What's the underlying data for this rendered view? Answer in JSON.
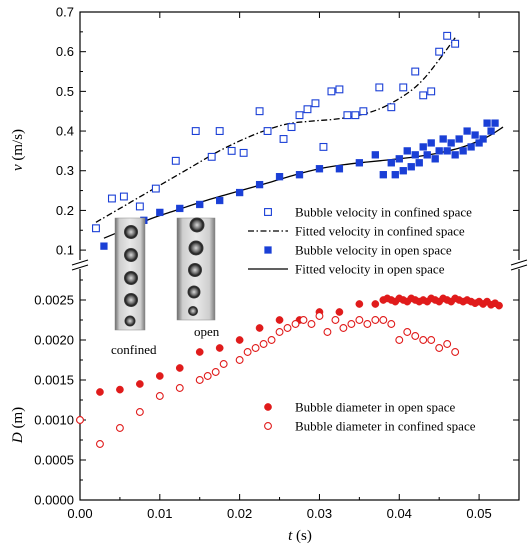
{
  "chart_data": {
    "type": "scatter",
    "xlabel": "t (s)",
    "xlim": [
      0.0,
      0.055
    ],
    "x_ticks": [
      "0.00",
      "0.01",
      "0.02",
      "0.03",
      "0.04",
      "0.05"
    ],
    "x_tick_values": [
      0.0,
      0.01,
      0.02,
      0.03,
      0.04,
      0.05
    ],
    "panels": [
      {
        "name": "velocity",
        "ylabel": "v (m/s)",
        "ylim": [
          0.07,
          0.7
        ],
        "y_ticks": [
          "0.1",
          "0.2",
          "0.3",
          "0.4",
          "0.5",
          "0.6",
          "0.7"
        ],
        "y_tick_values": [
          0.1,
          0.2,
          0.3,
          0.4,
          0.5,
          0.6,
          0.7
        ],
        "series": [
          {
            "name": "Bubble velocity in confined space",
            "marker": "open-square",
            "color": "#1a3fd6",
            "x": [
              0.002,
              0.004,
              0.0055,
              0.0075,
              0.0095,
              0.012,
              0.0145,
              0.0165,
              0.0175,
              0.019,
              0.0205,
              0.0225,
              0.0235,
              0.0255,
              0.0265,
              0.0275,
              0.0285,
              0.0295,
              0.0305,
              0.0315,
              0.0325,
              0.0335,
              0.0345,
              0.0355,
              0.0375,
              0.039,
              0.0405,
              0.042,
              0.043,
              0.044,
              0.045,
              0.046,
              0.047
            ],
            "y": [
              0.155,
              0.23,
              0.235,
              0.21,
              0.255,
              0.325,
              0.4,
              0.335,
              0.4,
              0.35,
              0.345,
              0.45,
              0.4,
              0.38,
              0.41,
              0.44,
              0.455,
              0.47,
              0.36,
              0.5,
              0.505,
              0.44,
              0.44,
              0.45,
              0.51,
              0.46,
              0.51,
              0.55,
              0.49,
              0.5,
              0.6,
              0.64,
              0.62
            ]
          },
          {
            "name": "Fitted velocity in confined space",
            "line": "dash-dot",
            "color": "#000000",
            "x": [
              0.002,
              0.005,
              0.008,
              0.011,
              0.014,
              0.017,
              0.02,
              0.023,
              0.026,
              0.029,
              0.032,
              0.035,
              0.038,
              0.041,
              0.043,
              0.045,
              0.047
            ],
            "y": [
              0.17,
              0.205,
              0.24,
              0.275,
              0.31,
              0.345,
              0.375,
              0.4,
              0.418,
              0.425,
              0.43,
              0.44,
              0.46,
              0.495,
              0.53,
              0.58,
              0.635
            ]
          },
          {
            "name": "Bubble velocity in open space",
            "marker": "filled-square",
            "color": "#1a3fd6",
            "x": [
              0.003,
              0.0055,
              0.008,
              0.01,
              0.0125,
              0.015,
              0.0175,
              0.02,
              0.0225,
              0.025,
              0.0275,
              0.03,
              0.0325,
              0.035,
              0.037,
              0.038,
              0.039,
              0.0395,
              0.04,
              0.0405,
              0.041,
              0.0415,
              0.042,
              0.0425,
              0.043,
              0.0435,
              0.044,
              0.0445,
              0.045,
              0.0455,
              0.046,
              0.0465,
              0.047,
              0.0475,
              0.048,
              0.0485,
              0.049,
              0.0495,
              0.05,
              0.0505,
              0.051,
              0.0515,
              0.052
            ],
            "y": [
              0.11,
              0.15,
              0.175,
              0.195,
              0.205,
              0.215,
              0.225,
              0.245,
              0.265,
              0.285,
              0.29,
              0.305,
              0.305,
              0.32,
              0.34,
              0.29,
              0.32,
              0.29,
              0.33,
              0.3,
              0.35,
              0.31,
              0.34,
              0.32,
              0.36,
              0.34,
              0.37,
              0.33,
              0.35,
              0.38,
              0.35,
              0.37,
              0.34,
              0.38,
              0.35,
              0.4,
              0.36,
              0.39,
              0.37,
              0.38,
              0.42,
              0.4,
              0.42
            ]
          },
          {
            "name": "Fitted velocity in open space",
            "line": "solid",
            "color": "#000000",
            "x": [
              0.003,
              0.006,
              0.009,
              0.012,
              0.015,
              0.018,
              0.021,
              0.024,
              0.027,
              0.03,
              0.033,
              0.036,
              0.039,
              0.042,
              0.045,
              0.048,
              0.051,
              0.053
            ],
            "y": [
              0.13,
              0.155,
              0.18,
              0.2,
              0.22,
              0.238,
              0.255,
              0.272,
              0.29,
              0.305,
              0.315,
              0.322,
              0.328,
              0.335,
              0.345,
              0.36,
              0.385,
              0.41
            ]
          }
        ]
      },
      {
        "name": "diameter",
        "ylabel": "D (m)",
        "ylim": [
          0.0,
          0.0029
        ],
        "y_ticks": [
          "0.0000",
          "0.0005",
          "0.0010",
          "0.0015",
          "0.0020",
          "0.0025"
        ],
        "y_tick_values": [
          0.0,
          0.0005,
          0.001,
          0.0015,
          0.002,
          0.0025
        ],
        "series": [
          {
            "name": "Bubble diameter in open space",
            "marker": "filled-circle",
            "color": "#e01b1b",
            "x": [
              0.0,
              0.0025,
              0.005,
              0.0075,
              0.01,
              0.0125,
              0.015,
              0.0175,
              0.02,
              0.0225,
              0.025,
              0.0275,
              0.03,
              0.0325,
              0.035,
              0.037,
              0.038,
              0.0385,
              0.039,
              0.0395,
              0.04,
              0.0405,
              0.041,
              0.0415,
              0.042,
              0.0425,
              0.043,
              0.0435,
              0.044,
              0.0445,
              0.045,
              0.0455,
              0.046,
              0.0465,
              0.047,
              0.0475,
              0.048,
              0.0485,
              0.049,
              0.0495,
              0.05,
              0.0505,
              0.051,
              0.0515,
              0.052,
              0.0525
            ],
            "y": [
              0.001,
              0.00135,
              0.00138,
              0.00145,
              0.00155,
              0.00165,
              0.00185,
              0.0019,
              0.002,
              0.00215,
              0.00225,
              0.00225,
              0.00235,
              0.00235,
              0.00245,
              0.00245,
              0.0025,
              0.00252,
              0.0025,
              0.00248,
              0.00252,
              0.0025,
              0.00248,
              0.00252,
              0.0025,
              0.00248,
              0.0025,
              0.00248,
              0.00252,
              0.0025,
              0.00248,
              0.00252,
              0.0025,
              0.00248,
              0.00252,
              0.0025,
              0.00248,
              0.0025,
              0.00248,
              0.00246,
              0.00248,
              0.00245,
              0.00248,
              0.00244,
              0.00246,
              0.00243
            ]
          },
          {
            "name": "Bubble diameter in confined space",
            "marker": "open-circle",
            "color": "#e01b1b",
            "x": [
              0.0,
              0.0025,
              0.005,
              0.0075,
              0.01,
              0.0125,
              0.015,
              0.016,
              0.017,
              0.018,
              0.02,
              0.021,
              0.022,
              0.023,
              0.024,
              0.025,
              0.026,
              0.027,
              0.028,
              0.029,
              0.03,
              0.031,
              0.032,
              0.033,
              0.034,
              0.035,
              0.036,
              0.037,
              0.038,
              0.039,
              0.04,
              0.041,
              0.042,
              0.043,
              0.044,
              0.045,
              0.046,
              0.047
            ],
            "y": [
              0.001,
              0.0007,
              0.0009,
              0.0011,
              0.0013,
              0.0014,
              0.0015,
              0.00155,
              0.0016,
              0.0017,
              0.00175,
              0.00185,
              0.0019,
              0.00195,
              0.002,
              0.0021,
              0.00215,
              0.0022,
              0.00225,
              0.0022,
              0.0023,
              0.0021,
              0.00225,
              0.00215,
              0.0022,
              0.00225,
              0.0022,
              0.00225,
              0.00225,
              0.0022,
              0.002,
              0.0021,
              0.00205,
              0.002,
              0.002,
              0.0019,
              0.00195,
              0.00185
            ]
          }
        ]
      }
    ],
    "legend": {
      "velocity": [
        "Bubble velocity in confined space",
        "Fitted velocity in confined space",
        "Bubble velocity in open space",
        "Fitted velocity in open space"
      ],
      "diameter": [
        "Bubble diameter in open space",
        "Bubble diameter in confined space"
      ]
    },
    "inset_labels": [
      "confined",
      "open"
    ]
  }
}
